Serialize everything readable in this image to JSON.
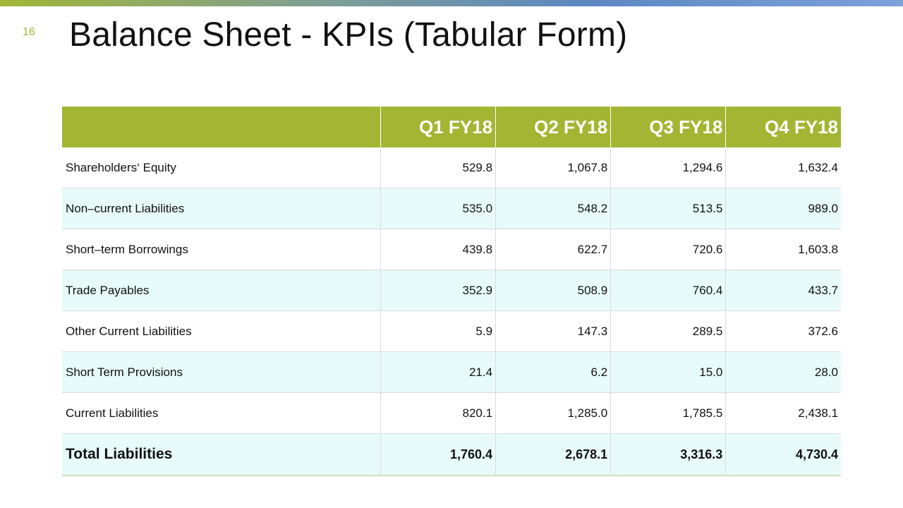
{
  "slide": {
    "number": "16",
    "title": "Balance Sheet - KPIs (Tabular Form)"
  },
  "table": {
    "headers": [
      "",
      "Q1 FY18",
      "Q2 FY18",
      "Q3 FY18",
      "Q4 FY18"
    ],
    "rows": [
      {
        "label": "Shareholders‘ Equity",
        "values": [
          "529.8",
          "1,067.8",
          "1,294.6",
          "1,632.4"
        ]
      },
      {
        "label": "Non–current Liabilities",
        "values": [
          "535.0",
          "548.2",
          "513.5",
          "989.0"
        ]
      },
      {
        "label": "Short–term Borrowings",
        "values": [
          "439.8",
          "622.7",
          "720.6",
          "1,603.8"
        ]
      },
      {
        "label": "Trade Payables",
        "values": [
          "352.9",
          "508.9",
          "760.4",
          "433.7"
        ]
      },
      {
        "label": "Other Current Liabilities",
        "values": [
          "5.9",
          "147.3",
          "289.5",
          "372.6"
        ]
      },
      {
        "label": "Short Term Provisions",
        "values": [
          "21.4",
          "6.2",
          "15.0",
          "28.0"
        ]
      },
      {
        "label": "Current Liabilities",
        "values": [
          "820.1",
          "1,285.0",
          "1,785.5",
          "2,438.1"
        ]
      },
      {
        "label": "Total Liabilities",
        "values": [
          "1,760.4",
          "2,678.1",
          "3,316.3",
          "4,730.4"
        ]
      }
    ]
  },
  "colors": {
    "header_bg": "#a2b633",
    "alt_row_bg": "#e7fbfa",
    "slide_number": "#a2b537"
  }
}
